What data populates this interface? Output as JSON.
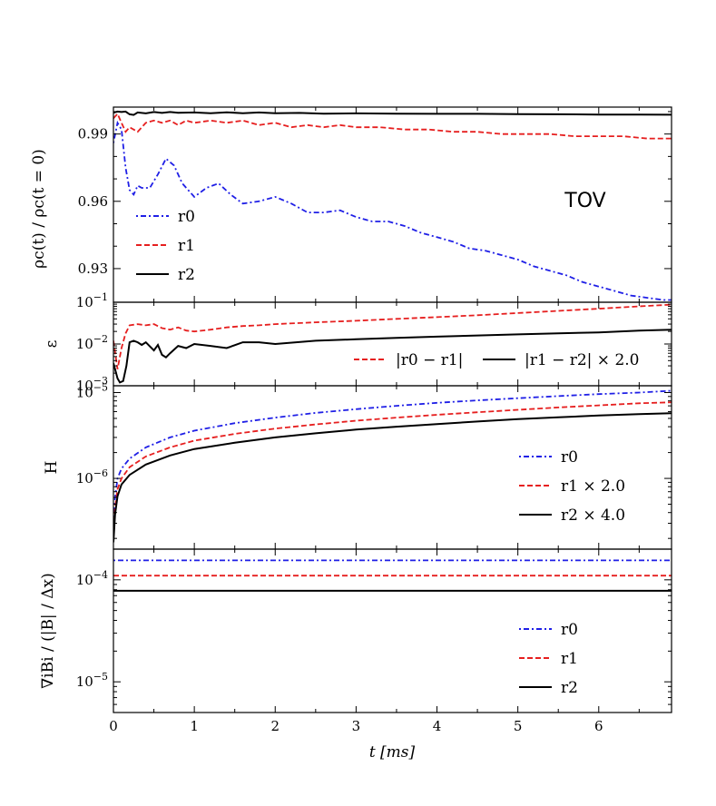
{
  "chart_data": {
    "type": "line",
    "title": "",
    "xlabel": "t [ms]",
    "xlim": [
      0,
      6.9
    ],
    "xticks": [
      "0",
      "1",
      "2",
      "3",
      "4",
      "5",
      "6"
    ],
    "colors": {
      "r0": "#1f1fe6",
      "r1": "#e61f1f",
      "r2": "#000000"
    },
    "panels": [
      {
        "id": "density",
        "ylabel": "ρc(t) / ρc(t = 0)",
        "yscale": "linear",
        "ylim": [
          0.915,
          1.002
        ],
        "yticks": [
          "0.93",
          "0.96",
          "0.99"
        ],
        "annotation": "TOV",
        "legend": [
          "r0",
          "r1",
          "r2"
        ],
        "series": [
          {
            "name": "r0",
            "t": [
              0,
              0.05,
              0.1,
              0.15,
              0.2,
              0.25,
              0.3,
              0.35,
              0.45,
              0.55,
              0.65,
              0.75,
              0.85,
              1.0,
              1.15,
              1.3,
              1.45,
              1.6,
              1.8,
              2.0,
              2.2,
              2.4,
              2.6,
              2.8,
              3.0,
              3.2,
              3.4,
              3.6,
              3.8,
              4.0,
              4.2,
              4.4,
              4.6,
              4.8,
              5.0,
              5.2,
              5.4,
              5.6,
              5.8,
              6.0,
              6.2,
              6.4,
              6.6,
              6.8,
              6.9
            ],
            "values": [
              0.986,
              0.995,
              0.992,
              0.975,
              0.965,
              0.963,
              0.967,
              0.966,
              0.966,
              0.972,
              0.979,
              0.976,
              0.968,
              0.962,
              0.966,
              0.968,
              0.963,
              0.959,
              0.96,
              0.962,
              0.959,
              0.955,
              0.955,
              0.956,
              0.953,
              0.951,
              0.951,
              0.949,
              0.946,
              0.944,
              0.942,
              0.939,
              0.938,
              0.936,
              0.934,
              0.931,
              0.929,
              0.927,
              0.924,
              0.922,
              0.92,
              0.918,
              0.917,
              0.916,
              0.916
            ]
          },
          {
            "name": "r1",
            "t": [
              0,
              0.05,
              0.1,
              0.15,
              0.2,
              0.3,
              0.4,
              0.5,
              0.6,
              0.7,
              0.8,
              0.9,
              1.0,
              1.2,
              1.4,
              1.6,
              1.8,
              2.0,
              2.2,
              2.4,
              2.6,
              2.8,
              3.0,
              3.3,
              3.6,
              3.9,
              4.2,
              4.5,
              4.8,
              5.1,
              5.4,
              5.7,
              6.0,
              6.3,
              6.6,
              6.9
            ],
            "values": [
              0.997,
              0.999,
              0.995,
              0.991,
              0.993,
              0.991,
              0.995,
              0.996,
              0.995,
              0.996,
              0.994,
              0.996,
              0.995,
              0.996,
              0.995,
              0.996,
              0.994,
              0.995,
              0.993,
              0.994,
              0.993,
              0.994,
              0.993,
              0.993,
              0.992,
              0.992,
              0.991,
              0.991,
              0.99,
              0.99,
              0.99,
              0.989,
              0.989,
              0.989,
              0.988,
              0.988
            ]
          },
          {
            "name": "r2",
            "t": [
              0,
              0.05,
              0.1,
              0.15,
              0.2,
              0.25,
              0.3,
              0.4,
              0.5,
              0.6,
              0.7,
              0.8,
              1.0,
              1.2,
              1.4,
              1.6,
              1.8,
              2.0,
              2.3,
              2.6,
              3.0,
              3.5,
              4.0,
              4.5,
              5.0,
              5.5,
              6.0,
              6.5,
              6.9
            ],
            "values": [
              0.9995,
              1.0,
              0.9998,
              1.0,
              0.9988,
              0.9985,
              0.9996,
              0.9992,
              0.9998,
              0.9994,
              0.9998,
              0.9995,
              0.9996,
              0.9993,
              0.9997,
              0.9993,
              0.9996,
              0.9993,
              0.9994,
              0.9991,
              0.9992,
              0.9991,
              0.999,
              0.999,
              0.9989,
              0.9988,
              0.9987,
              0.9987,
              0.9986
            ]
          }
        ]
      },
      {
        "id": "error",
        "ylabel": "ε",
        "yscale": "log",
        "ylim": [
          0.001,
          0.1
        ],
        "yticks": [
          {
            "base": "10",
            "exp": "−1",
            "value": 0.1
          },
          {
            "base": "10",
            "exp": "−2",
            "value": 0.01
          },
          {
            "base": "10",
            "exp": "−3",
            "value": 0.001
          }
        ],
        "legend": [
          "|r0 − r1|",
          "|r1 − r2| × 2.0"
        ],
        "series": [
          {
            "name": "|r0 − r1|",
            "color_key": "r1",
            "t": [
              0,
              0.05,
              0.1,
              0.15,
              0.2,
              0.3,
              0.4,
              0.5,
              0.6,
              0.7,
              0.8,
              0.9,
              1.0,
              1.2,
              1.4,
              1.6,
              1.8,
              2.0,
              2.5,
              3.0,
              3.5,
              4.0,
              4.5,
              5.0,
              5.5,
              6.0,
              6.5,
              6.9
            ],
            "values": [
              0.012,
              0.0025,
              0.008,
              0.018,
              0.028,
              0.03,
              0.028,
              0.03,
              0.024,
              0.022,
              0.025,
              0.021,
              0.02,
              0.022,
              0.025,
              0.027,
              0.028,
              0.03,
              0.033,
              0.036,
              0.04,
              0.044,
              0.049,
              0.055,
              0.062,
              0.07,
              0.08,
              0.088
            ]
          },
          {
            "name": "|r1 − r2| × 2.0",
            "color_key": "r2",
            "t": [
              0,
              0.05,
              0.08,
              0.12,
              0.16,
              0.2,
              0.25,
              0.3,
              0.35,
              0.4,
              0.5,
              0.55,
              0.6,
              0.65,
              0.7,
              0.8,
              0.9,
              1.0,
              1.2,
              1.4,
              1.6,
              1.8,
              2.0,
              2.5,
              3.0,
              3.5,
              4.0,
              4.5,
              5.0,
              5.5,
              6.0,
              6.5,
              6.9
            ],
            "values": [
              0.0035,
              0.0015,
              0.0012,
              0.0013,
              0.003,
              0.011,
              0.012,
              0.011,
              0.0095,
              0.011,
              0.007,
              0.0095,
              0.0055,
              0.0048,
              0.006,
              0.009,
              0.008,
              0.01,
              0.009,
              0.008,
              0.011,
              0.011,
              0.01,
              0.012,
              0.013,
              0.014,
              0.015,
              0.016,
              0.017,
              0.018,
              0.019,
              0.021,
              0.022
            ]
          }
        ]
      },
      {
        "id": "hamiltonian",
        "ylabel": "H",
        "yscale": "log",
        "ylim": [
          1.5e-07,
          1.2e-05
        ],
        "yticks": [
          {
            "base": "10",
            "exp": "−5",
            "value": 1e-05
          },
          {
            "base": "10",
            "exp": "−6",
            "value": 1e-06
          }
        ],
        "legend": [
          "r0",
          "r1 × 2.0",
          "r2 × 4.0"
        ],
        "series": [
          {
            "name": "r0",
            "t": [
              0.0,
              0.02,
              0.05,
              0.1,
              0.2,
              0.4,
              0.7,
              1.0,
              1.5,
              2.0,
              2.5,
              3.0,
              3.5,
              4.0,
              4.5,
              5.0,
              5.5,
              6.0,
              6.5,
              6.9
            ],
            "values": [
              2.5e-07,
              6e-07,
              1e-06,
              1.3e-06,
              1.7e-06,
              2.3e-06,
              3e-06,
              3.6e-06,
              4.4e-06,
              5.1e-06,
              5.8e-06,
              6.4e-06,
              7e-06,
              7.6e-06,
              8.1e-06,
              8.6e-06,
              9.1e-06,
              9.6e-06,
              1e-05,
              1.05e-05
            ]
          },
          {
            "name": "r1 × 2.0",
            "t": [
              0.0,
              0.02,
              0.05,
              0.1,
              0.2,
              0.4,
              0.7,
              1.0,
              1.5,
              2.0,
              2.5,
              3.0,
              3.5,
              4.0,
              4.5,
              5.0,
              5.5,
              6.0,
              6.5,
              6.9
            ],
            "values": [
              2e-07,
              4.5e-07,
              7.5e-07,
              1e-06,
              1.35e-06,
              1.8e-06,
              2.3e-06,
              2.75e-06,
              3.3e-06,
              3.8e-06,
              4.25e-06,
              4.7e-06,
              5.1e-06,
              5.5e-06,
              5.9e-06,
              6.3e-06,
              6.7e-06,
              7.1e-06,
              7.5e-06,
              7.7e-06
            ]
          },
          {
            "name": "r2 × 4.0",
            "t": [
              0.0,
              0.02,
              0.05,
              0.1,
              0.2,
              0.4,
              0.7,
              1.0,
              1.5,
              2.0,
              2.5,
              3.0,
              3.5,
              4.0,
              4.5,
              5.0,
              5.5,
              6.0,
              6.5,
              6.9
            ],
            "values": [
              1.8e-07,
              3.8e-07,
              6.2e-07,
              8.5e-07,
              1.1e-06,
              1.45e-06,
              1.85e-06,
              2.2e-06,
              2.6e-06,
              3e-06,
              3.35e-06,
              3.7e-06,
              4e-06,
              4.3e-06,
              4.6e-06,
              4.9e-06,
              5.15e-06,
              5.4e-06,
              5.6e-06,
              5.75e-06
            ]
          }
        ]
      },
      {
        "id": "divergence",
        "ylabel": "∇iBi / (|B| / Δx)",
        "yscale": "log",
        "ylim": [
          5e-06,
          0.0002
        ],
        "yticks": [
          {
            "base": "10",
            "exp": "−4",
            "value": 0.0001
          },
          {
            "base": "10",
            "exp": "−5",
            "value": 1e-05
          }
        ],
        "legend": [
          "r0",
          "r1",
          "r2"
        ],
        "series": [
          {
            "name": "r0",
            "t": [
              0,
              6.9
            ],
            "values": [
              0.000155,
              0.000155
            ]
          },
          {
            "name": "r1",
            "t": [
              0,
              6.9
            ],
            "values": [
              0.00011,
              0.00011
            ]
          },
          {
            "name": "r2",
            "t": [
              0,
              6.9
            ],
            "values": [
              7.8e-05,
              7.8e-05
            ]
          }
        ]
      }
    ]
  }
}
